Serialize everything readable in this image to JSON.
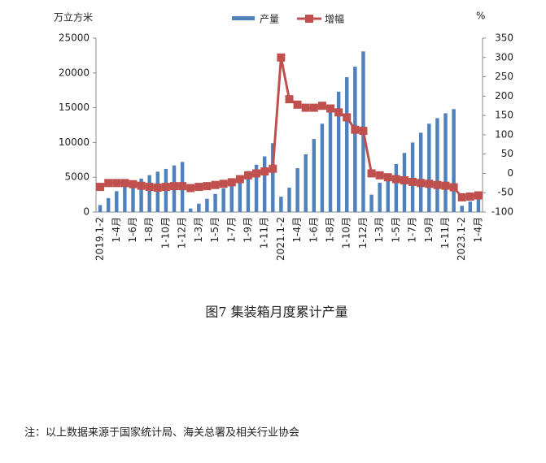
{
  "chart_data": {
    "type": "bar-line",
    "y_label": "万立方米",
    "y2_label": "%",
    "categories": [
      "2019.1-2",
      null,
      "1-4月",
      null,
      "1-6月",
      null,
      "1-8月",
      null,
      "1-10月",
      null,
      "1-12月",
      null,
      "1-3月",
      null,
      "1-5月",
      null,
      "1-7月",
      null,
      "1-9月",
      null,
      "1-11月",
      null,
      "2021.1-2",
      null,
      "1-4月",
      null,
      "1-6月",
      null,
      "1-8月",
      null,
      "1-10月",
      null,
      "1-12月",
      null,
      "1-3月",
      null,
      "1-5月",
      null,
      "1-7月",
      null,
      "1-9月",
      null,
      "1-11月",
      null,
      "2023.1-2",
      null,
      "1-4月"
    ],
    "series": [
      {
        "name": "产量",
        "kind": "bar",
        "color": "#4f81bd",
        "values": [
          1000,
          2000,
          3000,
          3700,
          4300,
          4800,
          5300,
          5800,
          6200,
          6700,
          7200,
          500,
          1200,
          1900,
          2600,
          3400,
          4100,
          5000,
          5900,
          6800,
          8000,
          9900,
          2200,
          3500,
          6300,
          8300,
          10500,
          12700,
          15000,
          17300,
          19400,
          20900,
          23100,
          2500,
          4200,
          5000,
          6900,
          8500,
          10000,
          11400,
          12700,
          13500,
          14200,
          14800,
          900,
          1500,
          2000
        ]
      },
      {
        "name": "增幅",
        "kind": "line",
        "axis": "y2",
        "color": "#c0504d",
        "values": [
          -35,
          -25,
          -25,
          -25,
          -28,
          -32,
          -35,
          -37,
          -35,
          -33,
          -33,
          -38,
          -35,
          -33,
          -30,
          -27,
          -23,
          -15,
          -5,
          0,
          5,
          12,
          300,
          192,
          178,
          170,
          170,
          175,
          168,
          158,
          145,
          113,
          110,
          0,
          -5,
          -10,
          -15,
          -18,
          -22,
          -25,
          -27,
          -30,
          -32,
          -36,
          -62,
          -60,
          -57
        ]
      }
    ],
    "ylim": [
      0,
      25000
    ],
    "yticks": [
      0,
      5000,
      10000,
      15000,
      20000,
      25000
    ],
    "y2lim": [
      -100,
      350
    ],
    "y2ticks": [
      -100,
      -50,
      0,
      50,
      100,
      150,
      200,
      250,
      300,
      350
    ],
    "caption": "图7 集装箱月度累计产量",
    "note": "注：以上数据来源于国家统计局、海关总署及相关行业协会"
  }
}
